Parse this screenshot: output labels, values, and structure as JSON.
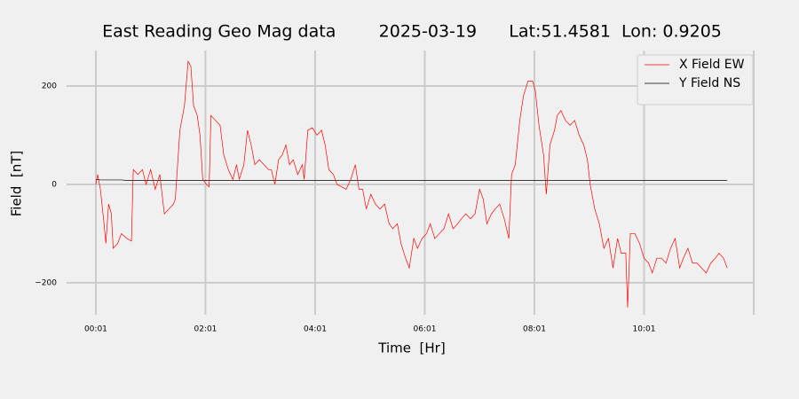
{
  "chart_data": {
    "type": "line",
    "title": "East Reading Geo Mag data        2025-03-19      Lat:51.4581  Lon: 0.9205",
    "x_label": "Time  [Hr]",
    "y_label": "Field  [nT]",
    "x": [
      1,
      3,
      6,
      10,
      12,
      15,
      18,
      20,
      25,
      29,
      35,
      40,
      42,
      47,
      52,
      56,
      61,
      66,
      71,
      76,
      81,
      86,
      88,
      93,
      98,
      102,
      105,
      108,
      112,
      115,
      118,
      122,
      125,
      127,
      132,
      137,
      141,
      146,
      151,
      155,
      158,
      163,
      167,
      171,
      175,
      180,
      185,
      190,
      193,
      197,
      201,
      205,
      209,
      213,
      217,
      222,
      227,
      229,
      233,
      238,
      243,
      248,
      252,
      256,
      261,
      265,
      270,
      275,
      280,
      285,
      289,
      293,
      297,
      302,
      307,
      312,
      317,
      322,
      326,
      331,
      335,
      340,
      344,
      349,
      353,
      358,
      363,
      367,
      372,
      377,
      382,
      387,
      392,
      397,
      401,
      406,
      411,
      416,
      421,
      425,
      429,
      434,
      438,
      443,
      448,
      453,
      456,
      460,
      465,
      469,
      474,
      479,
      482,
      486,
      491,
      494,
      498,
      503,
      506,
      510,
      515,
      520,
      525,
      530,
      535,
      539,
      542,
      547,
      552,
      557,
      562,
      567,
      572,
      576,
      581,
      583,
      586,
      591,
      596,
      601,
      606,
      610,
      615,
      620,
      625,
      630,
      635,
      640,
      644,
      649,
      654,
      659,
      664,
      669,
      674,
      679,
      683,
      688,
      692
    ],
    "series": [
      {
        "name": "X Field EW",
        "color": "#ff0000",
        "values": [
          0,
          20,
          -10,
          -80,
          -120,
          -40,
          -60,
          -130,
          -120,
          -100,
          -110,
          -115,
          30,
          20,
          30,
          0,
          30,
          -10,
          20,
          -60,
          -50,
          -40,
          -30,
          110,
          160,
          250,
          240,
          160,
          140,
          100,
          10,
          0,
          -5,
          140,
          130,
          120,
          60,
          30,
          10,
          40,
          10,
          40,
          110,
          80,
          40,
          50,
          40,
          30,
          30,
          0,
          50,
          60,
          80,
          40,
          50,
          20,
          40,
          10,
          110,
          115,
          100,
          110,
          80,
          30,
          20,
          0,
          -5,
          -10,
          10,
          40,
          -10,
          -10,
          -50,
          -20,
          -40,
          -50,
          -40,
          -80,
          -90,
          -80,
          -120,
          -150,
          -170,
          -110,
          -130,
          -110,
          -100,
          -80,
          -110,
          -100,
          -90,
          -60,
          -90,
          -80,
          -70,
          -60,
          -70,
          -60,
          -10,
          -30,
          -80,
          -60,
          -50,
          -40,
          -70,
          -110,
          20,
          40,
          130,
          180,
          210,
          210,
          190,
          120,
          60,
          -20,
          80,
          110,
          140,
          150,
          130,
          120,
          130,
          100,
          80,
          50,
          0,
          -50,
          -80,
          -130,
          -110,
          -170,
          -110,
          -140,
          -140,
          -250,
          -100,
          -100,
          -120,
          -150,
          -160,
          -180,
          -150,
          -150,
          -160,
          -130,
          -110,
          -170,
          -150,
          -130,
          -160,
          -160,
          -170,
          -180,
          -160,
          -150,
          -140,
          -150,
          -170
        ]
      },
      {
        "name": "Y Field NS",
        "color": "#000000",
        "values": [
          10,
          10,
          9,
          9,
          9,
          9,
          9,
          9,
          9,
          9,
          8,
          8,
          8,
          8,
          8,
          8,
          8,
          8,
          8,
          8,
          8,
          8,
          8,
          8,
          8,
          8,
          8,
          8,
          8,
          8,
          8,
          8,
          8,
          8,
          8,
          8,
          8,
          8,
          8,
          8,
          8,
          8,
          8,
          8,
          8,
          8,
          8,
          8,
          8,
          8,
          8,
          8,
          8,
          8,
          8,
          8,
          8,
          8,
          8,
          8,
          8,
          8,
          8,
          8,
          8,
          8,
          8,
          8,
          8,
          8,
          8,
          8,
          8,
          8,
          8,
          8,
          8,
          8,
          8,
          8,
          8,
          8,
          8,
          8,
          8,
          8,
          8,
          8,
          8,
          8,
          8,
          8,
          8,
          8,
          8,
          8,
          8,
          8,
          8,
          8,
          8,
          8,
          8,
          8,
          8,
          8,
          8,
          8,
          8,
          8,
          8,
          8,
          8,
          8,
          8,
          8,
          8,
          8,
          8,
          8,
          8,
          8,
          8,
          8,
          8,
          8,
          8,
          8,
          8,
          8,
          8,
          8,
          8,
          8,
          8,
          8,
          8,
          8,
          8,
          8,
          8,
          8,
          8,
          8,
          8,
          8,
          8,
          8,
          8,
          8,
          8,
          8,
          8,
          8,
          8,
          8,
          8,
          8,
          8
        ]
      }
    ],
    "xlim": [
      -31,
      721
    ],
    "xticks": [
      {
        "value": 1,
        "label": "00:01"
      },
      {
        "value": 121,
        "label": "02:01"
      },
      {
        "value": 241,
        "label": "04:01"
      },
      {
        "value": 361,
        "label": "06:01"
      },
      {
        "value": 481,
        "label": "08:01"
      },
      {
        "value": 601,
        "label": "10:01"
      }
    ],
    "ylim": [
      -265,
      272
    ],
    "yticks": [
      {
        "value": -200,
        "label": "−200"
      },
      0,
      200
    ],
    "grid": true,
    "legend": "upper right"
  }
}
